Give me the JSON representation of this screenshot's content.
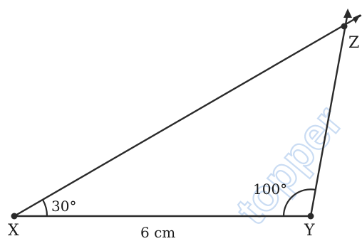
{
  "diagram": {
    "vertices": [
      {
        "id": "X",
        "label": "X"
      },
      {
        "id": "Y",
        "label": "Y"
      },
      {
        "id": "Z",
        "label": "Z"
      }
    ],
    "angles": {
      "at_x": "30°",
      "at_y": "100°"
    },
    "sides": {
      "xy": "6 cm"
    },
    "watermark": {
      "text": "topper"
    },
    "colors": {
      "line": "#2a2a2a",
      "text": "#1a1a1a",
      "watermark": "#9fc1ea"
    }
  }
}
